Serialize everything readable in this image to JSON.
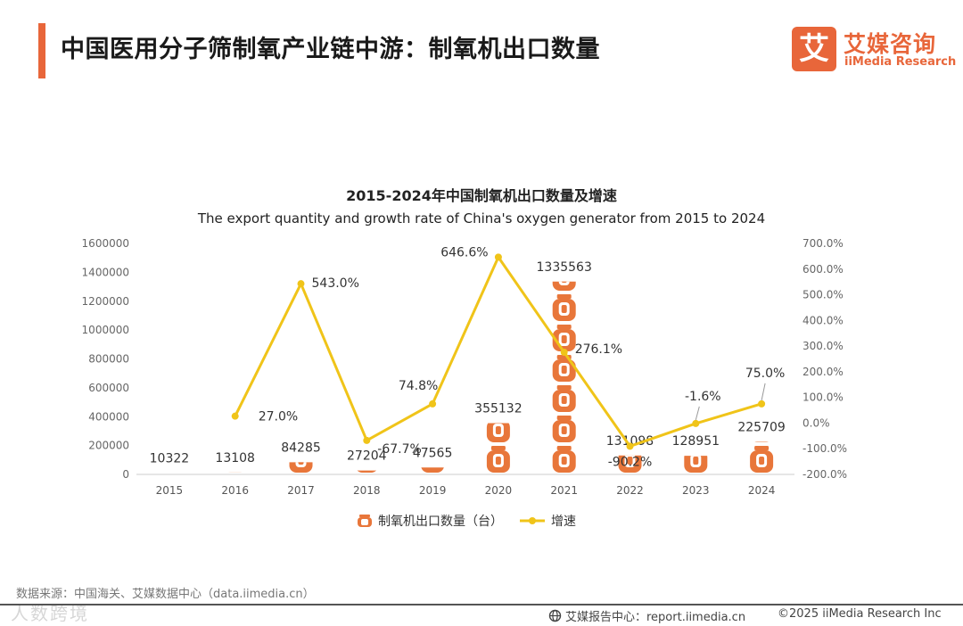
{
  "header": {
    "title": "中国医用分子筛制氧产业链中游：制氧机出口数量",
    "logo_mark": "艾",
    "logo_cn": "艾媒咨询",
    "logo_en": "iiMedia Research"
  },
  "colors": {
    "accent": "#e8663a",
    "bar": "#e8763a",
    "line": "#f0c419"
  },
  "chart_data": {
    "type": "bar",
    "title": "2015-2024年中国制氧机出口数量及增速",
    "subtitle": "The export quantity and growth rate of China's oxygen generator from 2015 to 2024",
    "categories": [
      "2015",
      "2016",
      "2017",
      "2018",
      "2019",
      "2020",
      "2021",
      "2022",
      "2023",
      "2024"
    ],
    "series": [
      {
        "name": "制氧机出口数量（台）",
        "type": "bar",
        "axis": "left",
        "values": [
          10322,
          13108,
          84285,
          27204,
          47565,
          355132,
          1335563,
          131098,
          128951,
          225709
        ],
        "labels": [
          "10322",
          "13108",
          "84285",
          "27204",
          "47565",
          "355132",
          "1335563",
          "131098",
          "128951",
          "225709"
        ]
      },
      {
        "name": "增速",
        "type": "line",
        "axis": "right",
        "values": [
          null,
          27.0,
          543.0,
          -67.7,
          74.8,
          646.6,
          276.1,
          -90.2,
          -1.6,
          75.0
        ],
        "labels": [
          "",
          "27.0%",
          "543.0%",
          "-67.7%",
          "74.8%",
          "646.6%",
          "276.1%",
          "-90.2%",
          "-1.6%",
          "75.0%"
        ]
      }
    ],
    "ylim_left": [
      0,
      1600000
    ],
    "yticks_left": [
      "0",
      "200000",
      "400000",
      "600000",
      "800000",
      "1000000",
      "1200000",
      "1400000",
      "1600000"
    ],
    "ylim_right": [
      -200,
      700
    ],
    "yticks_right": [
      "-200.0%",
      "-100.0%",
      "0.0%",
      "100.0%",
      "200.0%",
      "300.0%",
      "400.0%",
      "500.0%",
      "600.0%",
      "700.0%"
    ],
    "legend": "bottom",
    "grid": false
  },
  "footer": {
    "source": "数据来源：中国海关、艾媒数据中心（data.iimedia.cn）",
    "watermark": "人数跨境",
    "report": "艾媒报告中心：report.iimedia.cn",
    "copyright": "©2025  iiMedia Research  Inc"
  }
}
